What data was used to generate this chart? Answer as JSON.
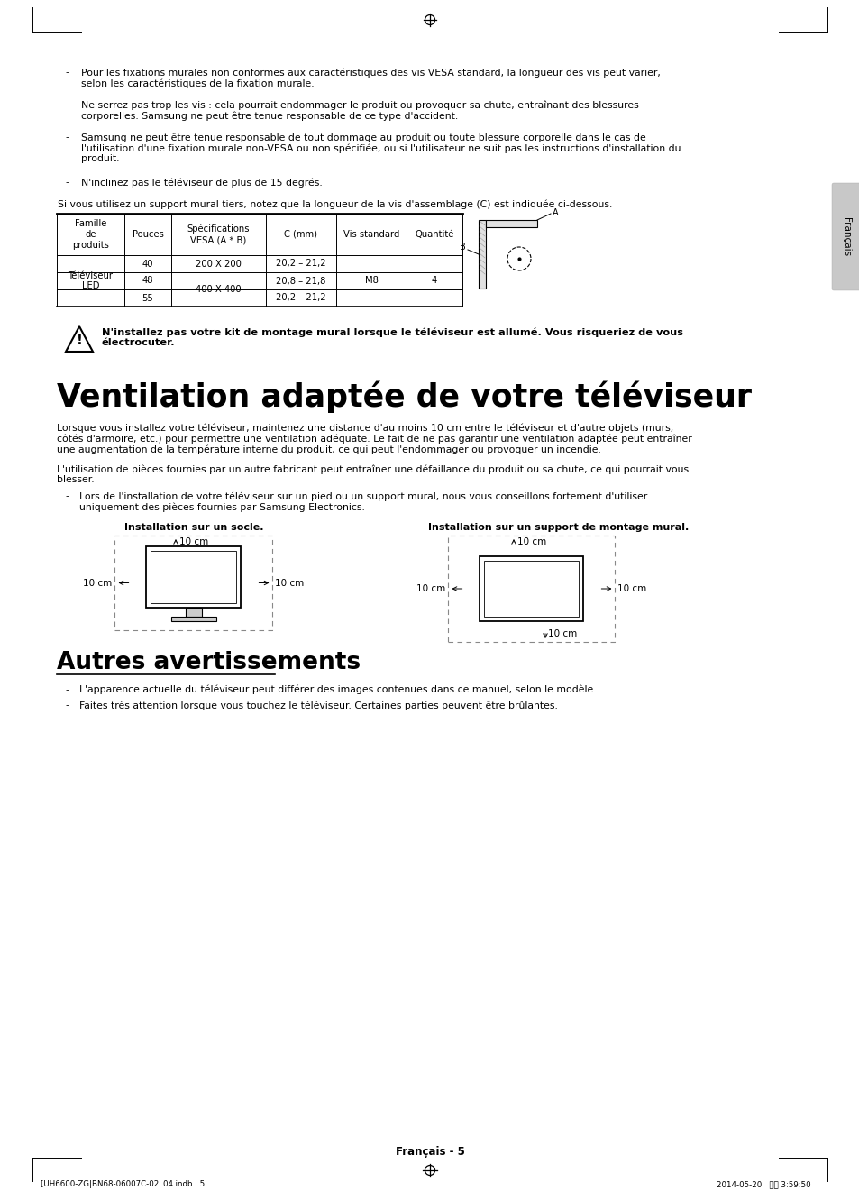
{
  "bg_color": "#ffffff",
  "bullets_top": [
    "Pour les fixations murales non conformes aux caractéristiques des vis VESA standard, la longueur des vis peut varier,\nselon les caractéristiques de la fixation murale.",
    "Ne serrez pas trop les vis : cela pourrait endommager le produit ou provoquer sa chute, entraînant des blessures\ncorporelles. Samsung ne peut être tenue responsable de ce type d'accident.",
    "Samsung ne peut être tenue responsable de tout dommage au produit ou toute blessure corporelle dans le cas de\nl'utilisation d'une fixation murale non-VESA ou non spécifiée, ou si l'utilisateur ne suit pas les instructions d'installation du\nproduit.",
    "N'inclinez pas le téléviseur de plus de 15 degrés."
  ],
  "table_intro": "Si vous utilisez un support mural tiers, notez que la longueur de la vis d'assemblage (C) est indiquée ci-dessous.",
  "table_headers": [
    "Famille\nde\nproduits",
    "Pouces",
    "Spécifications\nVESA (A * B)",
    "C (mm)",
    "Vis standard",
    "Quantité"
  ],
  "warning_text": "N'installez pas votre kit de montage mural lorsque le téléviseur est allumé. Vous risqueriez de vous\nélectrocuter.",
  "section1_title": "Ventilation adaptée de votre téléviseur",
  "section1_para1": "Lorsque vous installez votre téléviseur, maintenez une distance d'au moins 10 cm entre le téléviseur et d'autre objets (murs,\ncôtés d'armoire, etc.) pour permettre une ventilation adéquate. Le fait de ne pas garantir une ventilation adaptée peut entraîner\nune augmentation de la température interne du produit, ce qui peut l'endommager ou provoquer un incendie.",
  "section1_para2": "L'utilisation de pièces fournies par un autre fabricant peut entraîner une défaillance du produit ou sa chute, ce qui pourrait vous\nblesser.",
  "section1_bullet": "Lors de l'installation de votre téléviseur sur un pied ou un support mural, nous vous conseillons fortement d'utiliser\nuniquement des pièces fournies par Samsung Electronics.",
  "diag1_title": "Installation sur un socle.",
  "diag2_title": "Installation sur un support de montage mural.",
  "section2_title": "Autres avertissements",
  "section2_bullets": [
    "L'apparence actuelle du téléviseur peut différer des images contenues dans ce manuel, selon le modèle.",
    "Faites très attention lorsque vous touchez le téléviseur. Certaines parties peuvent être brûlantes."
  ],
  "footer_text": "Français - 5",
  "footer_file": "[UH6600-ZG|BN68-06007C-02L04.indb   5",
  "footer_date": "2014-05-20   午後 3:59:50",
  "sidebar_text": "Français"
}
